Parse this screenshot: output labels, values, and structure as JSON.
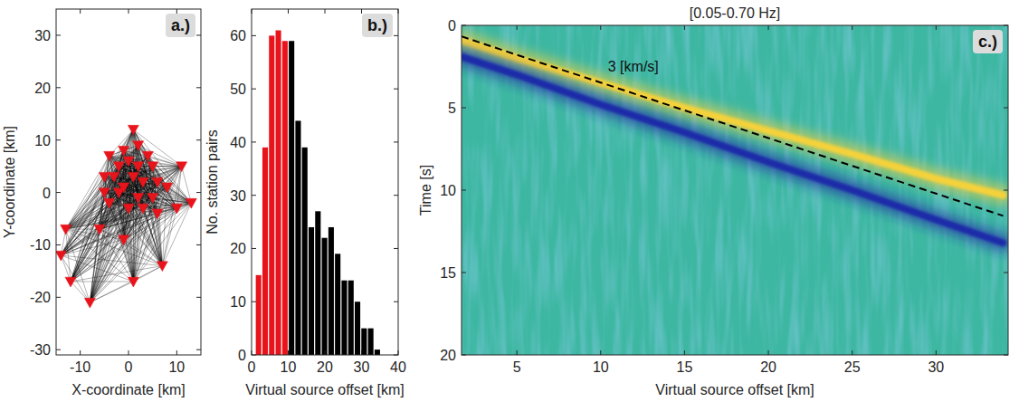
{
  "chart_data": [
    {
      "type": "scatter",
      "panel_label": "a.)",
      "x_label": "X-coordinate [km]",
      "y_label": "Y-coordinate [km]",
      "x": [
        1,
        -1,
        2,
        4,
        -4,
        0,
        2,
        -2,
        5,
        -5,
        -3,
        1,
        3,
        6,
        -1,
        11,
        13,
        -5,
        -2,
        2,
        5,
        8,
        0,
        -4,
        3,
        6,
        -13,
        -6,
        -1,
        7,
        1,
        -8,
        -12,
        -14,
        10
      ],
      "values": [
        12,
        8,
        9,
        7,
        7,
        6,
        5,
        5,
        5,
        3,
        3,
        3,
        2,
        2,
        1,
        5,
        -2,
        0,
        0,
        -1,
        -1,
        1,
        -3,
        -2,
        -3,
        -4,
        -7,
        -7,
        -9,
        -14,
        -17,
        -21,
        -17,
        -12,
        -3
      ],
      "xlim": [
        -15,
        15
      ],
      "ylim": [
        -31,
        35
      ],
      "xticks": [
        -10,
        0,
        10
      ],
      "yticks": [
        -30,
        -20,
        -10,
        0,
        10,
        20,
        30
      ],
      "color": "#e8141b",
      "marker": "triangle-down"
    },
    {
      "type": "histogram",
      "panel_label": "b.)",
      "x_label": "Virtual source offset [km]",
      "y_label": "No. station pairs",
      "bins": [
        1,
        2.8,
        4.6,
        6.4,
        8.2,
        10,
        11.8,
        13.6,
        15.4,
        17.2,
        19,
        20.8,
        22.6,
        24.4,
        26.2,
        28,
        29.8,
        31.6,
        33.4,
        35.2
      ],
      "values": [
        15,
        39,
        60,
        61,
        59,
        59,
        44,
        39,
        24,
        27,
        22,
        24,
        19,
        14,
        14,
        10,
        5,
        5,
        1
      ],
      "colors": [
        "#e8141b",
        "#e8141b",
        "#e8141b",
        "#e8141b",
        "#e8141b",
        "#000000",
        "#000000",
        "#000000",
        "#000000",
        "#000000",
        "#000000",
        "#000000",
        "#000000",
        "#000000",
        "#000000",
        "#000000",
        "#000000",
        "#000000",
        "#000000"
      ],
      "xlim": [
        0,
        40
      ],
      "ylim": [
        0,
        65
      ],
      "xticks": [
        0,
        10,
        20,
        30,
        40
      ],
      "yticks": [
        0,
        10,
        20,
        30,
        40,
        50,
        60
      ]
    },
    {
      "type": "line",
      "panel_label": "c.)",
      "title": "[0.05-0.70 Hz]",
      "annotation": "3 [km/s]",
      "x_label": "Virtual source offset [km]",
      "y_label": "Time [s]",
      "color": "#3db7a2",
      "x": [
        1.7,
        5,
        10,
        15,
        20,
        25,
        30,
        34
      ],
      "series": [
        {
          "type": "band",
          "color": "#f5d23a",
          "values": [
            0.9,
            2.0,
            3.5,
            5.0,
            6.4,
            7.8,
            9.3,
            10.3
          ]
        },
        {
          "type": "band",
          "color": "#1b2aa8",
          "values": [
            1.9,
            3.0,
            4.8,
            6.5,
            8.3,
            10.0,
            11.8,
            13.2
          ]
        },
        {
          "type": "line",
          "line_style": "dashed",
          "color": "#000000",
          "values": [
            0.67,
            1.79,
            3.47,
            5.16,
            6.84,
            8.53,
            10.21,
            11.56
          ]
        }
      ],
      "xlim": [
        1.7,
        34.3
      ],
      "ylim": [
        20,
        0
      ],
      "xticks": [
        5,
        10,
        15,
        20,
        25,
        30
      ],
      "yticks": [
        0,
        5,
        10,
        15,
        20
      ]
    }
  ]
}
